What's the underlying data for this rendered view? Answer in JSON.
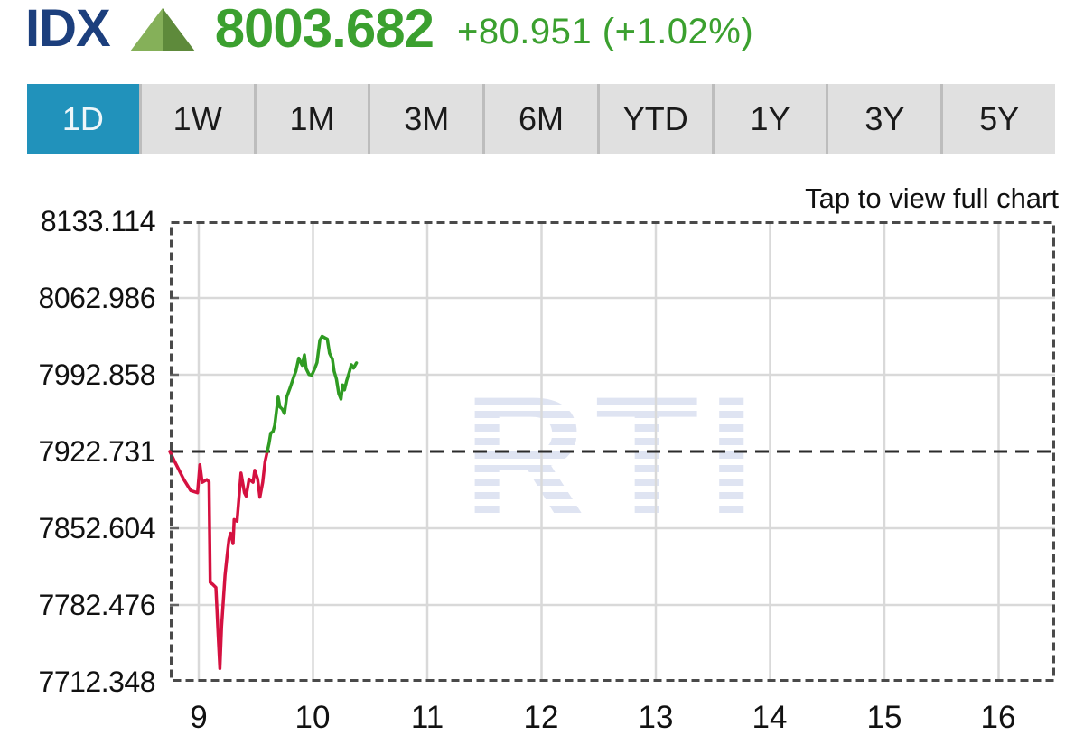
{
  "header": {
    "symbol": "IDX",
    "last": "8003.682",
    "change": "+80.951 (+1.02%)",
    "direction": "up",
    "colors": {
      "symbol": "#1c3f7d",
      "up_text": "#3ba02f",
      "triangle_light": "#85b059",
      "triangle_dark": "#5e8a3b"
    }
  },
  "range_tabs": {
    "items": [
      "1D",
      "1W",
      "1M",
      "3M",
      "6M",
      "YTD",
      "1Y",
      "3Y",
      "5Y"
    ],
    "active": "1D",
    "active_bg": "#2192bb",
    "inactive_bg": "#e0e0e0"
  },
  "chart_hint": "Tap to view full chart",
  "watermark": "RTI",
  "chart_data": {
    "type": "line",
    "title": "IDX intraday price",
    "xlabel": "hour of day",
    "ylabel": "index level",
    "grid": true,
    "legend": "none",
    "xlim": [
      8.747,
      16.494
    ],
    "ylim": [
      7712.348,
      8133.114
    ],
    "x_ticks": [
      9,
      10,
      11,
      12,
      13,
      14,
      15,
      16
    ],
    "x_tick_labels": [
      "9",
      "10",
      "11",
      "12",
      "13",
      "14",
      "15",
      "16"
    ],
    "y_ticks": [
      8133.114,
      8062.986,
      7992.858,
      7922.731,
      7852.604,
      7782.476,
      7712.348
    ],
    "y_tick_labels": [
      "8133.114",
      "8062.986",
      "7992.858",
      "7922.731",
      "7852.604",
      "7782.476",
      "7712.348"
    ],
    "previous_close": 7922.731,
    "line_color_up": "#2f9b22",
    "line_color_down": "#d51140",
    "prev_close_line_color": "#2b2b2b",
    "grid_color": "#d9d9d9",
    "border_color": "#4a4a4a",
    "watermark_color": "#dfe4f2",
    "series": [
      {
        "name": "IDX",
        "points": [
          [
            8.747,
            7922.7
          ],
          [
            8.79,
            7913.5
          ],
          [
            8.87,
            7897.0
          ],
          [
            8.93,
            7887.0
          ],
          [
            8.99,
            7885.0
          ],
          [
            9.01,
            7910.5
          ],
          [
            9.03,
            7894.5
          ],
          [
            9.07,
            7897.0
          ],
          [
            9.09,
            7895.0
          ],
          [
            9.1,
            7803.0
          ],
          [
            9.12,
            7801.5
          ],
          [
            9.15,
            7798.5
          ],
          [
            9.17,
            7755.0
          ],
          [
            9.185,
            7724.5
          ],
          [
            9.2,
            7763.0
          ],
          [
            9.23,
            7809.5
          ],
          [
            9.25,
            7829.0
          ],
          [
            9.265,
            7842.5
          ],
          [
            9.28,
            7848.0
          ],
          [
            9.3,
            7838.5
          ],
          [
            9.31,
            7860.5
          ],
          [
            9.335,
            7859.0
          ],
          [
            9.37,
            7903.0
          ],
          [
            9.4,
            7885.0
          ],
          [
            9.415,
            7882.0
          ],
          [
            9.44,
            7897.5
          ],
          [
            9.475,
            7894.5
          ],
          [
            9.49,
            7905.5
          ],
          [
            9.515,
            7897.5
          ],
          [
            9.535,
            7881.0
          ],
          [
            9.56,
            7894.5
          ],
          [
            9.58,
            7913.5
          ],
          [
            9.595,
            7920.5
          ],
          [
            9.615,
            7930.0
          ],
          [
            9.63,
            7939.5
          ],
          [
            9.65,
            7941.0
          ],
          [
            9.665,
            7946.5
          ],
          [
            9.695,
            7972.5
          ],
          [
            9.71,
            7963.5
          ],
          [
            9.73,
            7961.5
          ],
          [
            9.75,
            7957.5
          ],
          [
            9.77,
            7972.5
          ],
          [
            9.8,
            7981.0
          ],
          [
            9.83,
            7990.5
          ],
          [
            9.85,
            7996.0
          ],
          [
            9.875,
            8008.0
          ],
          [
            9.905,
            8001.5
          ],
          [
            9.925,
            8011.0
          ],
          [
            9.94,
            7998.5
          ],
          [
            9.965,
            7993.0
          ],
          [
            9.99,
            7992.5
          ],
          [
            10.015,
            7998.5
          ],
          [
            10.035,
            8004.0
          ],
          [
            10.06,
            8024.5
          ],
          [
            10.08,
            8028.0
          ],
          [
            10.105,
            8026.5
          ],
          [
            10.125,
            8025.5
          ],
          [
            10.145,
            8012.5
          ],
          [
            10.17,
            8007.0
          ],
          [
            10.185,
            7996.0
          ],
          [
            10.205,
            7989.0
          ],
          [
            10.225,
            7975.5
          ],
          [
            10.245,
            7970.5
          ],
          [
            10.26,
            7983.5
          ],
          [
            10.275,
            7979.0
          ],
          [
            10.295,
            7987.5
          ],
          [
            10.32,
            7996.0
          ],
          [
            10.335,
            8002.0
          ],
          [
            10.355,
            7999.0
          ],
          [
            10.38,
            8003.7
          ]
        ]
      }
    ]
  }
}
